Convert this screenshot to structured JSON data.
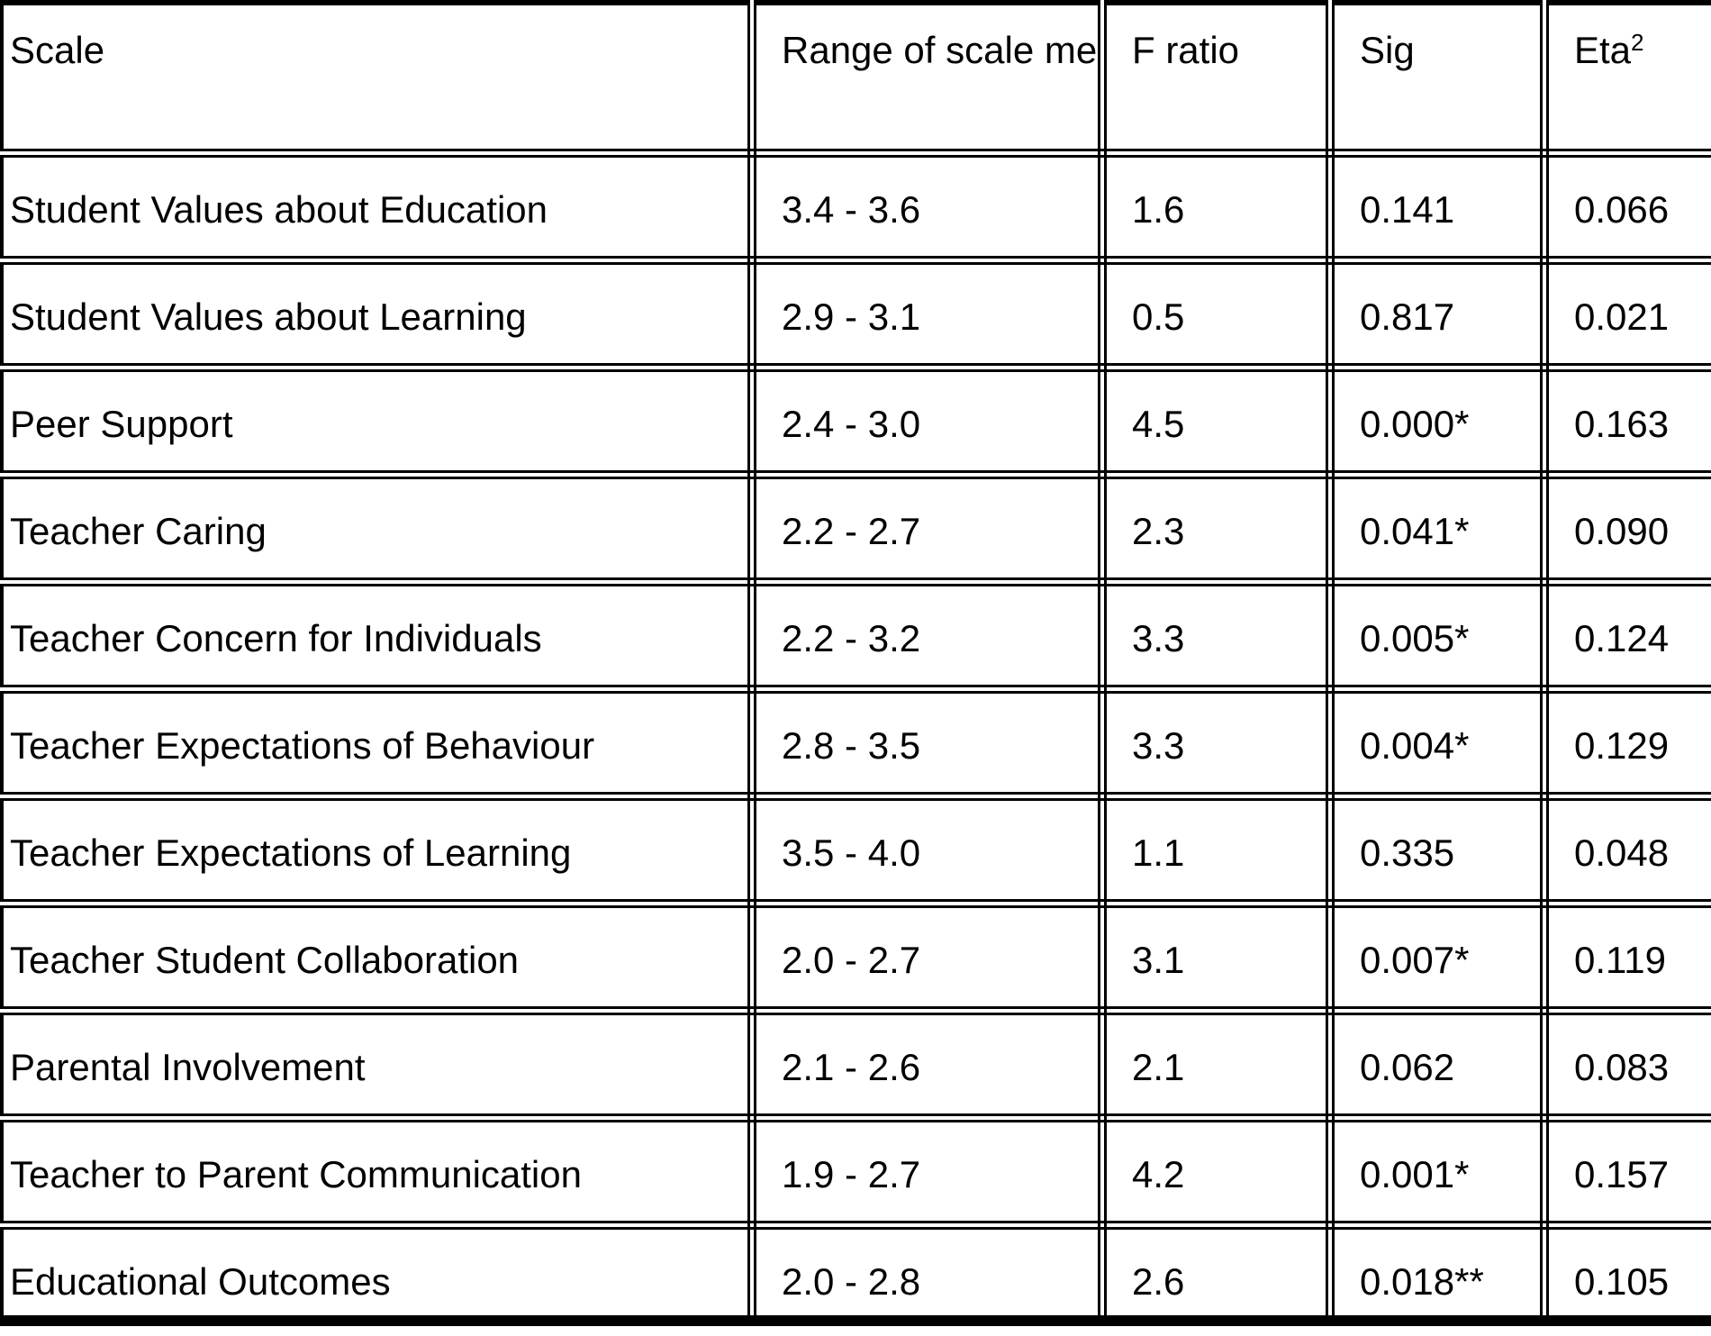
{
  "table": {
    "header": {
      "scale": "Scale",
      "range": "Range of scale mean scores",
      "f_ratio": "F ratio",
      "sig": "Sig",
      "eta_base": "Eta",
      "eta_sup": "2"
    },
    "rows": [
      {
        "scale": "Student Values about Education",
        "range": "3.4 - 3.6",
        "f_ratio": "1.6",
        "sig": "0.141",
        "eta_squared": "0.066"
      },
      {
        "scale": "Student Values about Learning",
        "range": "2.9 - 3.1",
        "f_ratio": "0.5",
        "sig": "0.817",
        "eta_squared": "0.021"
      },
      {
        "scale": "Peer Support",
        "range": "2.4 - 3.0",
        "f_ratio": "4.5",
        "sig": "0.000*",
        "eta_squared": "0.163"
      },
      {
        "scale": "Teacher Caring",
        "range": "2.2 - 2.7",
        "f_ratio": "2.3",
        "sig": "0.041*",
        "eta_squared": "0.090"
      },
      {
        "scale": "Teacher Concern for Individuals",
        "range": "2.2 - 3.2",
        "f_ratio": "3.3",
        "sig": "0.005*",
        "eta_squared": "0.124"
      },
      {
        "scale": "Teacher Expectations of Behaviour",
        "range": "2.8 - 3.5",
        "f_ratio": "3.3",
        "sig": "0.004*",
        "eta_squared": "0.129"
      },
      {
        "scale": "Teacher Expectations of Learning",
        "range": "3.5 - 4.0",
        "f_ratio": "1.1",
        "sig": "0.335",
        "eta_squared": "0.048"
      },
      {
        "scale": "Teacher Student Collaboration",
        "range": "2.0 - 2.7",
        "f_ratio": "3.1",
        "sig": "0.007*",
        "eta_squared": "0.119"
      },
      {
        "scale": "Parental Involvement",
        "range": "2.1 - 2.6",
        "f_ratio": "2.1",
        "sig": "0.062",
        "eta_squared": "0.083"
      },
      {
        "scale": "Teacher to Parent Communication",
        "range": "1.9 - 2.7",
        "f_ratio": "4.2",
        "sig": "0.001*",
        "eta_squared": "0.157"
      },
      {
        "scale": "Educational Outcomes",
        "range": "2.0 - 2.8",
        "f_ratio": "2.6",
        "sig": "0.018**",
        "eta_squared": "0.105"
      }
    ]
  }
}
